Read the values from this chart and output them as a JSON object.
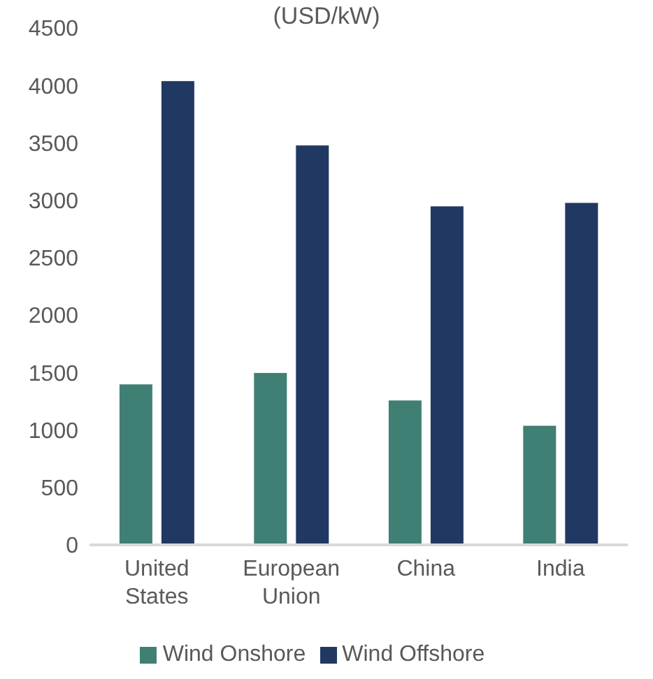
{
  "chart_data": {
    "type": "bar",
    "title": "(USD/kW)",
    "categories": [
      "United States",
      "European Union",
      "China",
      "India"
    ],
    "series": [
      {
        "name": "Wind Onshore",
        "color": "#3f7f74",
        "values": [
          1400,
          1500,
          1260,
          1040
        ]
      },
      {
        "name": "Wind Offshore",
        "color": "#213862",
        "values": [
          4040,
          3480,
          2950,
          2980
        ]
      }
    ],
    "ylim": [
      0,
      4500
    ],
    "yticks": [
      0,
      500,
      1000,
      1500,
      2000,
      2500,
      3000,
      3500,
      4000,
      4500
    ],
    "grid": false,
    "legend": "bottom"
  }
}
